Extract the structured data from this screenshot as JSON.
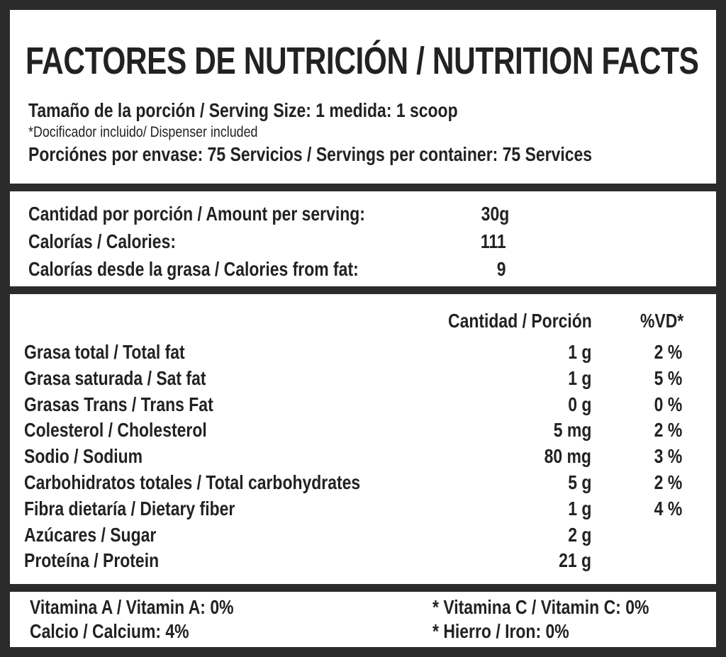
{
  "header": {
    "title": "FACTORES DE NUTRICIÓN / NUTRITION FACTS",
    "serving_size": "Tamaño de la porción / Serving Size: 1 medida: 1 scoop",
    "dispenser_note": "*Docificador incluido/ Dispenser included",
    "servings_per_container": "Porciónes por envase: 75 Servicios / Servings per container: 75 Services"
  },
  "amount": {
    "rows": [
      {
        "label": "Cantidad por porción / Amount per serving:",
        "value": "30g"
      },
      {
        "label": "Calorías / Calories:",
        "value": "111"
      },
      {
        "label": "Calorías desde la grasa / Calories from fat:",
        "value": "9"
      }
    ]
  },
  "table": {
    "col_qty": "Cantidad / Porción",
    "col_dv": "%VD*",
    "rows": [
      {
        "label": "Grasa total / Total fat",
        "qty": "1 g",
        "dv": "2 %"
      },
      {
        "label": "Grasa saturada / Sat fat",
        "qty": "1 g",
        "dv": "5 %"
      },
      {
        "label": "Grasas Trans / Trans Fat",
        "qty": "0 g",
        "dv": "0 %"
      },
      {
        "label": "Colesterol / Cholesterol",
        "qty": "5 mg",
        "dv": "2 %"
      },
      {
        "label": "Sodio / Sodium",
        "qty": "80 mg",
        "dv": "3 %"
      },
      {
        "label": "Carbohidratos totales / Total carbohydrates",
        "qty": "5 g",
        "dv": "2 %"
      },
      {
        "label": "Fibra dietaría / Dietary fiber",
        "qty": "1 g",
        "dv": "4 %"
      },
      {
        "label": "Azúcares / Sugar",
        "qty": "2 g",
        "dv": ""
      },
      {
        "label": "Proteína / Protein",
        "qty": "21 g",
        "dv": ""
      }
    ]
  },
  "vitamins": {
    "vitamin_a": "Vitamina A / Vitamin A: 0%",
    "calcium": "Calcio / Calcium: 4%",
    "vitamin_c": "* Vitamina C / Vitamin C: 0%",
    "iron": "* Hierro / Iron: 0%"
  }
}
